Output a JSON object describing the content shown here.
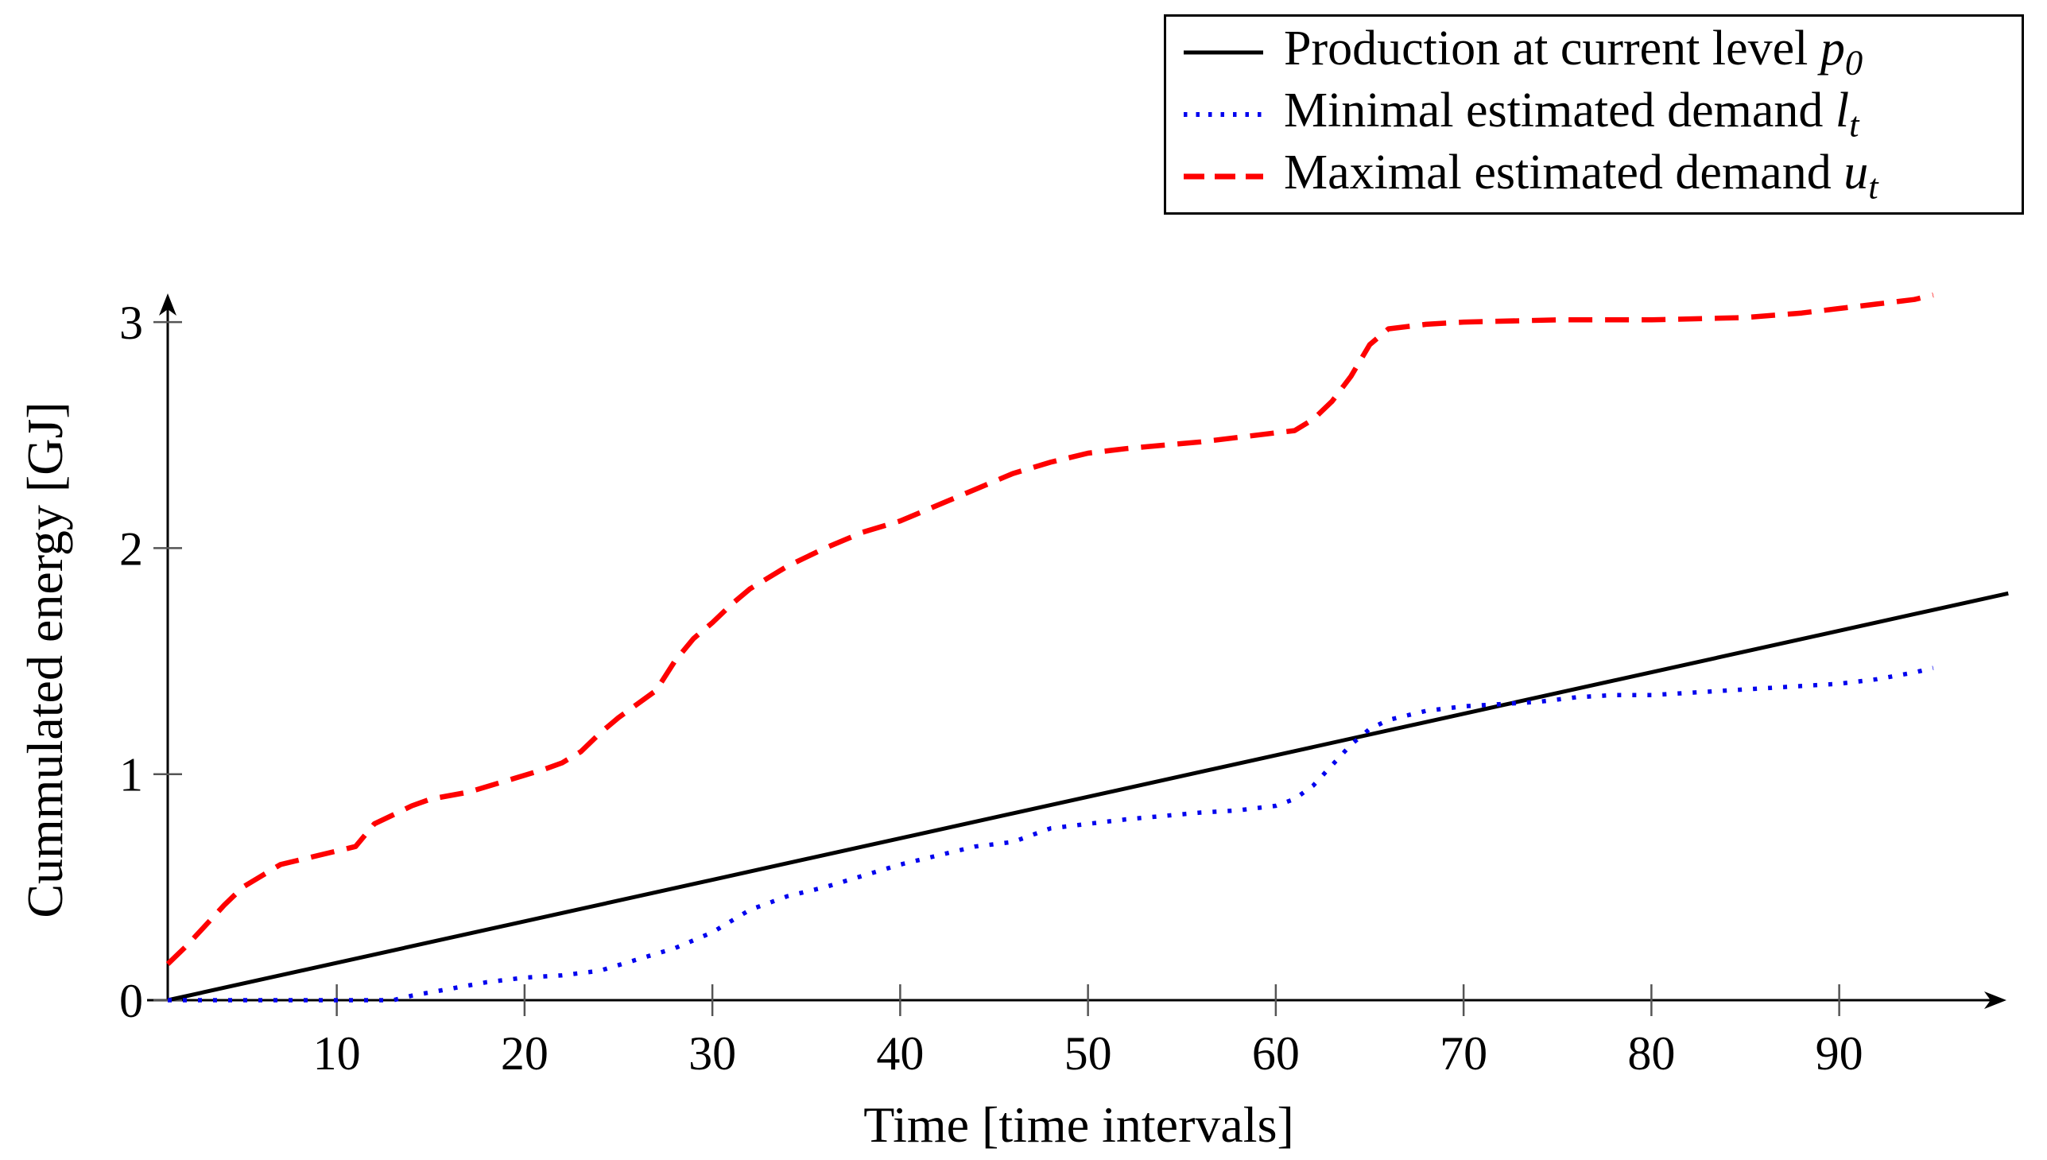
{
  "figure": {
    "background": "#ffffff",
    "axis_color": "#000000",
    "tick_color": "#555555",
    "legend_border_color": "#000000"
  },
  "chart_data": {
    "type": "line",
    "title": "",
    "xlabel": "Time [time intervals]",
    "ylabel": "Cummulated energy [GJ]",
    "xticks": [
      10,
      20,
      30,
      40,
      50,
      60,
      70,
      80,
      90
    ],
    "yticks": [
      0,
      1,
      2,
      3
    ],
    "xlim": [
      1,
      99
    ],
    "ylim": [
      0,
      3.2
    ],
    "grid": false,
    "legend_position": "top-right",
    "series": [
      {
        "id": "production",
        "name": "Production at current level p0",
        "legend_label": {
          "text": "Production at current level ",
          "var": "p",
          "sub": "0"
        },
        "color": "#000000",
        "style": "solid",
        "points": [
          [
            1,
            0
          ],
          [
            99,
            1.8
          ]
        ]
      },
      {
        "id": "minimal-demand",
        "name": "Minimal estimated demand lt",
        "legend_label": {
          "text": "Minimal estimated demand ",
          "var": "l",
          "sub": "t"
        },
        "color": "#0000ee",
        "style": "dotted",
        "points": [
          [
            1,
            0
          ],
          [
            13,
            0
          ],
          [
            14,
            0.02
          ],
          [
            16,
            0.05
          ],
          [
            18,
            0.08
          ],
          [
            20,
            0.1
          ],
          [
            22,
            0.11
          ],
          [
            24,
            0.13
          ],
          [
            26,
            0.18
          ],
          [
            28,
            0.23
          ],
          [
            30,
            0.3
          ],
          [
            32,
            0.4
          ],
          [
            34,
            0.46
          ],
          [
            36,
            0.5
          ],
          [
            38,
            0.55
          ],
          [
            40,
            0.6
          ],
          [
            42,
            0.64
          ],
          [
            44,
            0.68
          ],
          [
            46,
            0.7
          ],
          [
            48,
            0.76
          ],
          [
            50,
            0.78
          ],
          [
            52,
            0.8
          ],
          [
            54,
            0.815
          ],
          [
            56,
            0.83
          ],
          [
            58,
            0.84
          ],
          [
            60,
            0.86
          ],
          [
            61,
            0.89
          ],
          [
            62,
            0.95
          ],
          [
            63,
            1.04
          ],
          [
            64,
            1.13
          ],
          [
            65,
            1.2
          ],
          [
            66,
            1.24
          ],
          [
            68,
            1.28
          ],
          [
            70,
            1.3
          ],
          [
            72,
            1.31
          ],
          [
            74,
            1.32
          ],
          [
            76,
            1.34
          ],
          [
            78,
            1.35
          ],
          [
            80,
            1.35
          ],
          [
            82,
            1.36
          ],
          [
            84,
            1.37
          ],
          [
            86,
            1.38
          ],
          [
            88,
            1.39
          ],
          [
            90,
            1.4
          ],
          [
            92,
            1.42
          ],
          [
            94,
            1.45
          ],
          [
            95,
            1.47
          ]
        ]
      },
      {
        "id": "maximal-demand",
        "name": "Maximal estimated demand ut",
        "legend_label": {
          "text": "Maximal estimated demand ",
          "var": "u",
          "sub": "t"
        },
        "color": "#fe0000",
        "style": "dashed",
        "points": [
          [
            1,
            0.16
          ],
          [
            2,
            0.24
          ],
          [
            3,
            0.33
          ],
          [
            4,
            0.42
          ],
          [
            5,
            0.5
          ],
          [
            6,
            0.55
          ],
          [
            7,
            0.6
          ],
          [
            8,
            0.62
          ],
          [
            9,
            0.64
          ],
          [
            10,
            0.66
          ],
          [
            11,
            0.68
          ],
          [
            12,
            0.78
          ],
          [
            13,
            0.82
          ],
          [
            14,
            0.86
          ],
          [
            15,
            0.89
          ],
          [
            17,
            0.92
          ],
          [
            19,
            0.97
          ],
          [
            21,
            1.02
          ],
          [
            22,
            1.05
          ],
          [
            23,
            1.1
          ],
          [
            24,
            1.18
          ],
          [
            25,
            1.25
          ],
          [
            26,
            1.31
          ],
          [
            27,
            1.37
          ],
          [
            28,
            1.5
          ],
          [
            29,
            1.6
          ],
          [
            30,
            1.67
          ],
          [
            31,
            1.75
          ],
          [
            32,
            1.82
          ],
          [
            33,
            1.87
          ],
          [
            34,
            1.92
          ],
          [
            36,
            2.0
          ],
          [
            38,
            2.07
          ],
          [
            40,
            2.12
          ],
          [
            42,
            2.19
          ],
          [
            44,
            2.26
          ],
          [
            46,
            2.33
          ],
          [
            48,
            2.38
          ],
          [
            50,
            2.42
          ],
          [
            52,
            2.44
          ],
          [
            54,
            2.455
          ],
          [
            56,
            2.47
          ],
          [
            58,
            2.49
          ],
          [
            60,
            2.51
          ],
          [
            61,
            2.52
          ],
          [
            62,
            2.57
          ],
          [
            63,
            2.65
          ],
          [
            64,
            2.76
          ],
          [
            65,
            2.9
          ],
          [
            66,
            2.97
          ],
          [
            68,
            2.99
          ],
          [
            70,
            3.0
          ],
          [
            75,
            3.01
          ],
          [
            80,
            3.01
          ],
          [
            85,
            3.02
          ],
          [
            88,
            3.04
          ],
          [
            90,
            3.06
          ],
          [
            92,
            3.08
          ],
          [
            94,
            3.1
          ],
          [
            95,
            3.12
          ]
        ]
      }
    ]
  }
}
